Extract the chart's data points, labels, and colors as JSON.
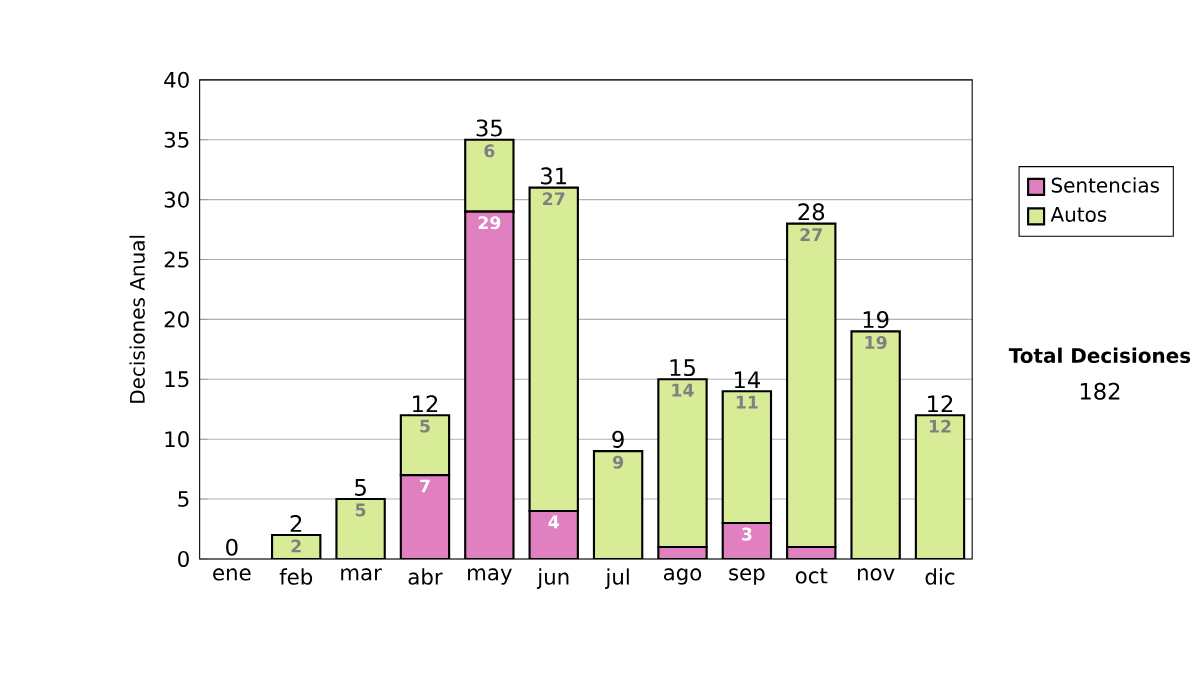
{
  "chart_data": {
    "type": "bar",
    "stacked": true,
    "ylabel": "Decisiones Anual",
    "categories": [
      "ene",
      "feb",
      "mar",
      "abr",
      "may",
      "jun",
      "jul",
      "ago",
      "sep",
      "oct",
      "nov",
      "dic"
    ],
    "series": [
      {
        "name": "Sentencias",
        "color": "#e080c0",
        "values": [
          0,
          0,
          0,
          7,
          29,
          4,
          0,
          1,
          3,
          1,
          0,
          0
        ],
        "value_labels": [
          null,
          null,
          null,
          "7",
          "29",
          "4",
          null,
          null,
          "3",
          null,
          null,
          null
        ]
      },
      {
        "name": "Autos",
        "color": "#d8ec98",
        "values": [
          0,
          2,
          5,
          5,
          6,
          27,
          9,
          14,
          11,
          27,
          19,
          12
        ],
        "value_labels": [
          null,
          "2",
          "5",
          "5",
          "6",
          "27",
          "9",
          "14",
          "11",
          "27",
          "19",
          "12"
        ]
      }
    ],
    "totals": [
      "0",
      "2",
      "5",
      "12",
      "35",
      "31",
      "9",
      "15",
      "14",
      "28",
      "19",
      "12"
    ],
    "ylim": [
      0,
      40
    ],
    "yticks": [
      0,
      5,
      10,
      15,
      20,
      25,
      30,
      35,
      40
    ],
    "grid": "y",
    "legend": "right",
    "annotations": [
      "Total Decisiones",
      "182"
    ]
  }
}
